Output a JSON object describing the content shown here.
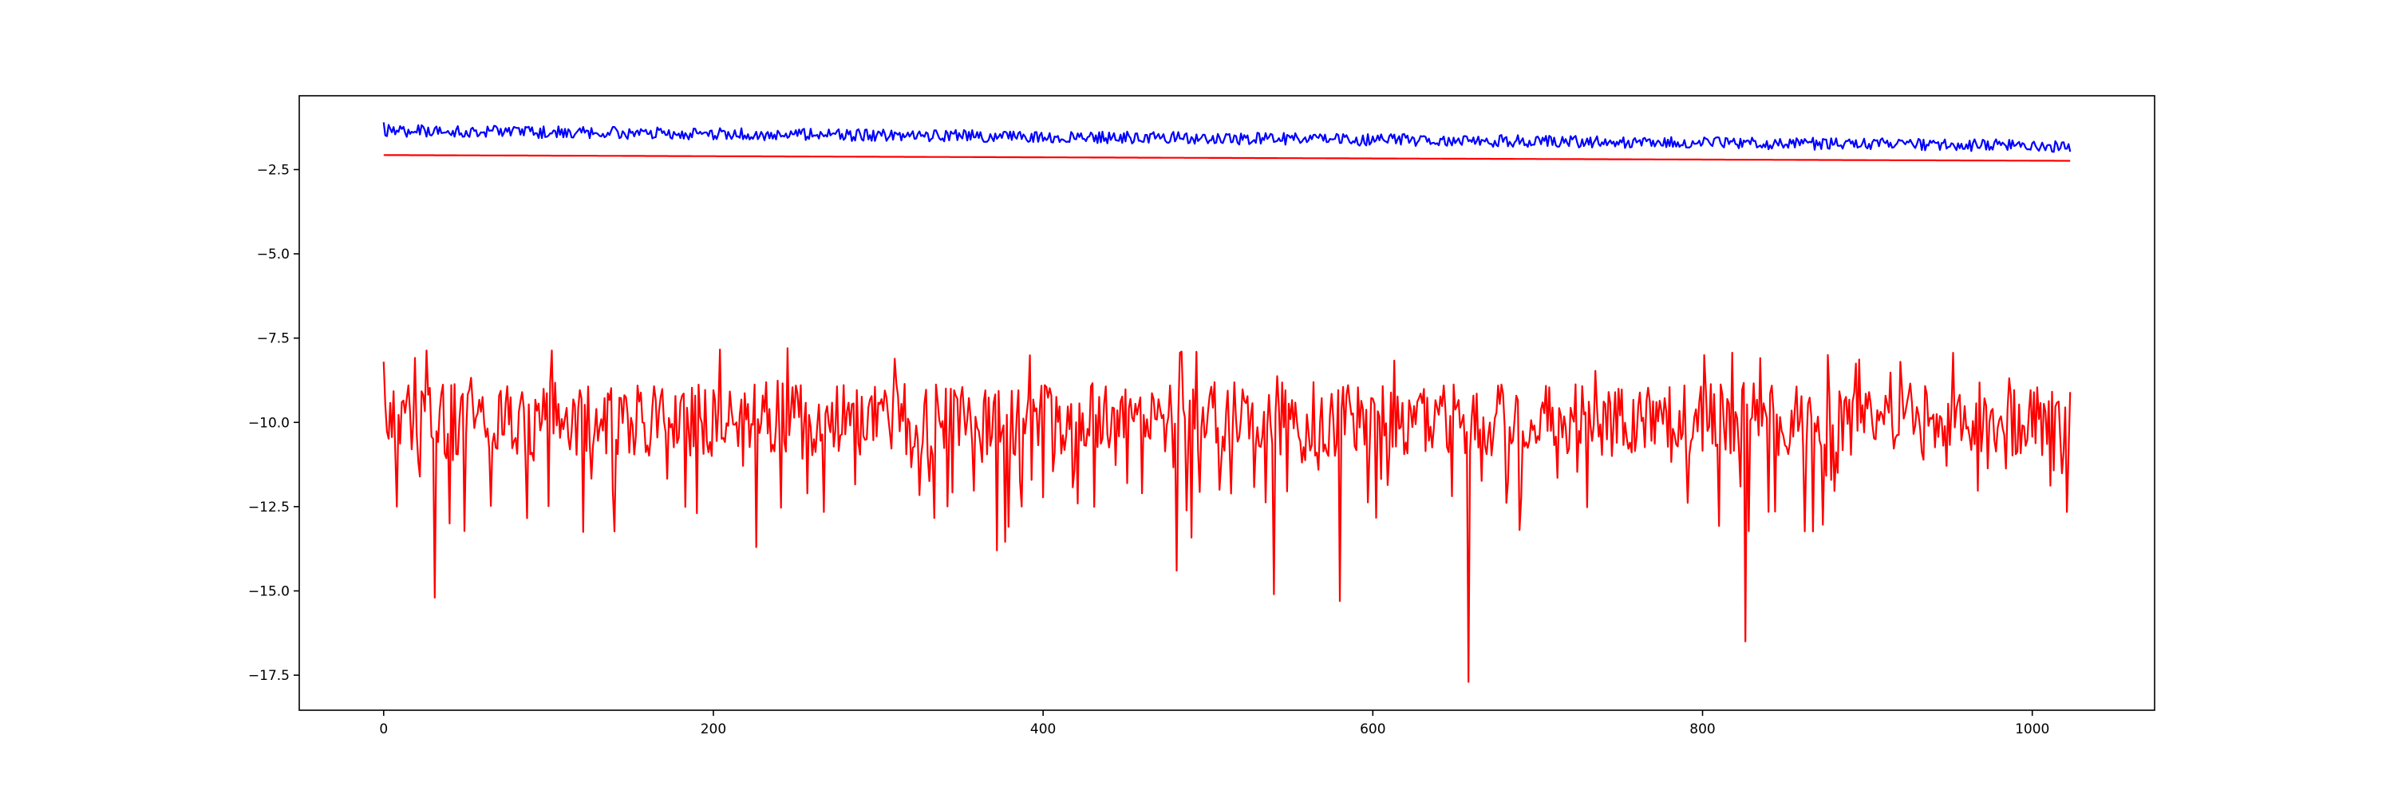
{
  "chart_data": {
    "type": "line",
    "title": "",
    "xlabel": "",
    "ylabel": "",
    "xlim": [
      -51.2,
      1074.2
    ],
    "ylim": [
      -18.54,
      -0.31
    ],
    "x_ticks": [
      0,
      200,
      400,
      600,
      800,
      1000
    ],
    "y_ticks": [
      -17.5,
      -15.0,
      -12.5,
      -10.0,
      -7.5,
      -5.0,
      -2.5
    ],
    "x_tick_labels": [
      "0",
      "200",
      "400",
      "600",
      "800",
      "1000"
    ],
    "y_tick_labels": [
      "−17.5",
      "−15.0",
      "−12.5",
      "−10.0",
      "−7.5",
      "−5.0",
      "−2.5"
    ],
    "grid": false,
    "legend": "none",
    "x_range": [
      0,
      1023
    ],
    "series": [
      {
        "color": "#0000ff",
        "kind": "noisy",
        "x_start": 0,
        "x_end": 1023,
        "trend_start": -1.35,
        "trend_end": -1.8,
        "noise_amplitude": 0.18,
        "notable_points": [
          {
            "x": 0,
            "y": -1.1
          }
        ]
      },
      {
        "color": "#ff0000",
        "kind": "line",
        "x_start": 0,
        "x_end": 1023,
        "trend_start": -2.07,
        "trend_end": -2.24
      },
      {
        "color": "#ff0000",
        "kind": "noisy",
        "x_start": 0,
        "x_end": 1023,
        "trend_start": -9.9,
        "trend_end": -9.9,
        "noise_amplitude": 1.1,
        "notable_points": [
          {
            "x": 0,
            "y": -8.2
          },
          {
            "x": 8,
            "y": -12.5
          },
          {
            "x": 31,
            "y": -15.2
          },
          {
            "x": 40,
            "y": -13.0
          },
          {
            "x": 226,
            "y": -13.7
          },
          {
            "x": 245,
            "y": -7.8
          },
          {
            "x": 372,
            "y": -13.8
          },
          {
            "x": 481,
            "y": -14.4
          },
          {
            "x": 484,
            "y": -7.9
          },
          {
            "x": 540,
            "y": -15.1
          },
          {
            "x": 580,
            "y": -15.3
          },
          {
            "x": 658,
            "y": -17.7
          },
          {
            "x": 826,
            "y": -16.5
          },
          {
            "x": 920,
            "y": -8.2
          },
          {
            "x": 1023,
            "y": -9.1
          }
        ]
      }
    ]
  }
}
